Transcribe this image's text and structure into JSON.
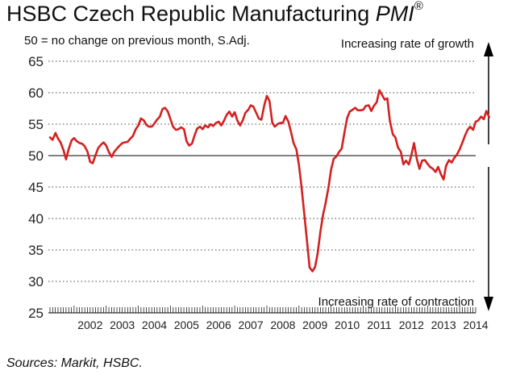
{
  "title": {
    "main": "HSBC Czech Republic Manufacturing ",
    "italic": "PMI",
    "mark": "®"
  },
  "subtitle": "50 = no change on previous month, S.Adj.",
  "annotations": {
    "top": "Increasing rate of growth",
    "bottom": "Increasing rate of contraction"
  },
  "source": "Sources: Markit, HSBC.",
  "colors": {
    "series": "#d42020",
    "axis": "#000000",
    "grid": "#444444"
  },
  "chart_data": {
    "type": "line",
    "x_unit": "year (decimal)",
    "xlim": [
      2001.2,
      2014.5
    ],
    "ylim": [
      25,
      65
    ],
    "yticks": [
      25,
      30,
      35,
      40,
      45,
      50,
      55,
      60,
      65
    ],
    "xtick_labels": [
      "2002",
      "2003",
      "2004",
      "2005",
      "2006",
      "2007",
      "2008",
      "2009",
      "2010",
      "2011",
      "2012",
      "2013",
      "2014"
    ],
    "reference_line": 50,
    "grid": "dotted horizontal",
    "series": [
      {
        "points": [
          [
            2001.25,
            52.9
          ],
          [
            2001.33,
            52.5
          ],
          [
            2001.42,
            53.6
          ],
          [
            2001.5,
            52.7
          ],
          [
            2001.58,
            52.1
          ],
          [
            2001.67,
            50.9
          ],
          [
            2001.75,
            49.4
          ],
          [
            2001.83,
            51.0
          ],
          [
            2001.92,
            52.4
          ],
          [
            2002.0,
            52.8
          ],
          [
            2002.08,
            52.3
          ],
          [
            2002.17,
            52.0
          ],
          [
            2002.25,
            51.9
          ],
          [
            2002.33,
            51.5
          ],
          [
            2002.42,
            50.6
          ],
          [
            2002.5,
            49.0
          ],
          [
            2002.58,
            48.8
          ],
          [
            2002.67,
            50.1
          ],
          [
            2002.75,
            51.2
          ],
          [
            2002.83,
            51.7
          ],
          [
            2002.92,
            52.1
          ],
          [
            2003.0,
            51.6
          ],
          [
            2003.08,
            50.6
          ],
          [
            2003.17,
            49.8
          ],
          [
            2003.25,
            50.6
          ],
          [
            2003.33,
            51.1
          ],
          [
            2003.42,
            51.6
          ],
          [
            2003.5,
            52.0
          ],
          [
            2003.58,
            52.1
          ],
          [
            2003.67,
            52.2
          ],
          [
            2003.75,
            52.7
          ],
          [
            2003.83,
            53.1
          ],
          [
            2003.92,
            54.2
          ],
          [
            2004.0,
            54.8
          ],
          [
            2004.08,
            55.9
          ],
          [
            2004.17,
            55.6
          ],
          [
            2004.25,
            54.9
          ],
          [
            2004.33,
            54.6
          ],
          [
            2004.42,
            54.6
          ],
          [
            2004.5,
            55.1
          ],
          [
            2004.58,
            55.7
          ],
          [
            2004.67,
            56.2
          ],
          [
            2004.75,
            57.4
          ],
          [
            2004.83,
            57.6
          ],
          [
            2004.92,
            57.0
          ],
          [
            2005.0,
            55.8
          ],
          [
            2005.08,
            54.6
          ],
          [
            2005.17,
            54.1
          ],
          [
            2005.25,
            54.2
          ],
          [
            2005.33,
            54.5
          ],
          [
            2005.42,
            54.2
          ],
          [
            2005.5,
            52.3
          ],
          [
            2005.58,
            51.6
          ],
          [
            2005.67,
            51.9
          ],
          [
            2005.75,
            53.2
          ],
          [
            2005.83,
            54.3
          ],
          [
            2005.92,
            54.6
          ],
          [
            2006.0,
            54.2
          ],
          [
            2006.08,
            54.8
          ],
          [
            2006.17,
            54.5
          ],
          [
            2006.25,
            55.0
          ],
          [
            2006.33,
            54.7
          ],
          [
            2006.42,
            55.2
          ],
          [
            2006.5,
            55.4
          ],
          [
            2006.58,
            54.8
          ],
          [
            2006.67,
            55.6
          ],
          [
            2006.75,
            56.5
          ],
          [
            2006.83,
            57.0
          ],
          [
            2006.92,
            56.2
          ],
          [
            2007.0,
            56.9
          ],
          [
            2007.08,
            55.6
          ],
          [
            2007.17,
            54.8
          ],
          [
            2007.25,
            55.6
          ],
          [
            2007.33,
            56.8
          ],
          [
            2007.42,
            57.3
          ],
          [
            2007.5,
            58.0
          ],
          [
            2007.58,
            57.8
          ],
          [
            2007.67,
            56.8
          ],
          [
            2007.75,
            55.9
          ],
          [
            2007.83,
            55.7
          ],
          [
            2007.92,
            58.0
          ],
          [
            2008.0,
            59.5
          ],
          [
            2008.08,
            58.7
          ],
          [
            2008.17,
            55.2
          ],
          [
            2008.25,
            54.6
          ],
          [
            2008.33,
            55.0
          ],
          [
            2008.42,
            55.2
          ],
          [
            2008.5,
            55.2
          ],
          [
            2008.58,
            56.3
          ],
          [
            2008.67,
            55.4
          ],
          [
            2008.75,
            53.8
          ],
          [
            2008.83,
            52.0
          ],
          [
            2008.92,
            51.0
          ],
          [
            2009.0,
            48.5
          ],
          [
            2009.08,
            45.0
          ],
          [
            2009.17,
            40.5
          ],
          [
            2009.25,
            36.4
          ],
          [
            2009.33,
            32.2
          ],
          [
            2009.42,
            31.6
          ],
          [
            2009.5,
            32.3
          ],
          [
            2009.58,
            34.4
          ],
          [
            2009.67,
            38.0
          ],
          [
            2009.75,
            40.6
          ],
          [
            2009.83,
            42.5
          ],
          [
            2009.92,
            45.0
          ],
          [
            2010.0,
            47.8
          ],
          [
            2010.08,
            49.5
          ],
          [
            2010.17,
            49.9
          ],
          [
            2010.25,
            50.6
          ],
          [
            2010.33,
            51.1
          ],
          [
            2010.42,
            53.8
          ],
          [
            2010.5,
            56.0
          ],
          [
            2010.58,
            57.0
          ],
          [
            2010.67,
            57.3
          ],
          [
            2010.75,
            57.6
          ],
          [
            2010.83,
            57.2
          ],
          [
            2010.92,
            57.2
          ],
          [
            2011.0,
            57.3
          ],
          [
            2011.08,
            57.9
          ],
          [
            2011.17,
            58.0
          ],
          [
            2011.25,
            57.1
          ],
          [
            2011.33,
            57.9
          ],
          [
            2011.42,
            58.5
          ],
          [
            2011.5,
            60.4
          ],
          [
            2011.58,
            59.7
          ],
          [
            2011.67,
            58.9
          ],
          [
            2011.75,
            59.1
          ],
          [
            2011.83,
            55.5
          ],
          [
            2011.92,
            53.4
          ],
          [
            2012.0,
            52.9
          ],
          [
            2012.08,
            51.3
          ],
          [
            2012.17,
            50.6
          ],
          [
            2012.25,
            48.6
          ],
          [
            2012.33,
            49.2
          ],
          [
            2012.42,
            48.6
          ],
          [
            2012.5,
            50.1
          ],
          [
            2012.58,
            52.0
          ],
          [
            2012.67,
            49.4
          ],
          [
            2012.75,
            47.9
          ],
          [
            2012.83,
            49.2
          ],
          [
            2012.92,
            49.3
          ],
          [
            2013.0,
            48.7
          ],
          [
            2013.08,
            48.2
          ],
          [
            2013.17,
            47.9
          ],
          [
            2013.25,
            47.4
          ],
          [
            2013.33,
            48.2
          ],
          [
            2013.42,
            47.0
          ],
          [
            2013.5,
            46.2
          ],
          [
            2013.58,
            48.4
          ],
          [
            2013.67,
            49.3
          ],
          [
            2013.75,
            48.9
          ],
          [
            2013.83,
            49.6
          ],
          [
            2013.92,
            50.2
          ],
          [
            2014.0,
            51.0
          ],
          [
            2014.08,
            52.0
          ],
          [
            2014.17,
            53.2
          ],
          [
            2014.25,
            54.1
          ],
          [
            2014.33,
            54.6
          ],
          [
            2014.42,
            54.1
          ],
          [
            2014.5,
            55.4
          ],
          [
            2014.58,
            55.6
          ],
          [
            2014.67,
            56.2
          ],
          [
            2014.75,
            55.8
          ],
          [
            2014.83,
            57.1
          ],
          [
            2014.92,
            56.1
          ]
        ]
      }
    ]
  }
}
